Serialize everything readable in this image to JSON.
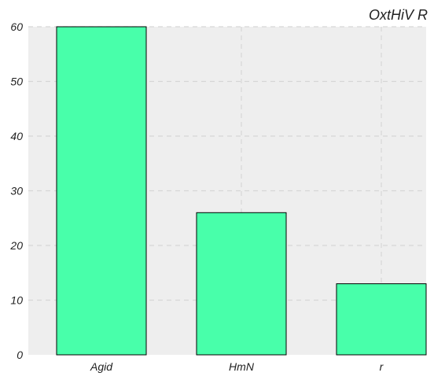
{
  "chart_data": {
    "type": "bar",
    "title": "OxtHiV R",
    "xlabel": "",
    "ylabel": "",
    "categories": [
      "Agid",
      "HmN",
      "r"
    ],
    "values": [
      60,
      26,
      13
    ],
    "ylim": [
      0,
      60
    ],
    "yticks": [
      0,
      10,
      20,
      30,
      40,
      50,
      60
    ],
    "grid": true,
    "legend": "none",
    "colors": {
      "bar_fill": "#48ffaa",
      "bar_edge": "#000000",
      "plot_background": "#eeeeee",
      "grid": "#d6d6d6",
      "text": "#222222"
    }
  }
}
